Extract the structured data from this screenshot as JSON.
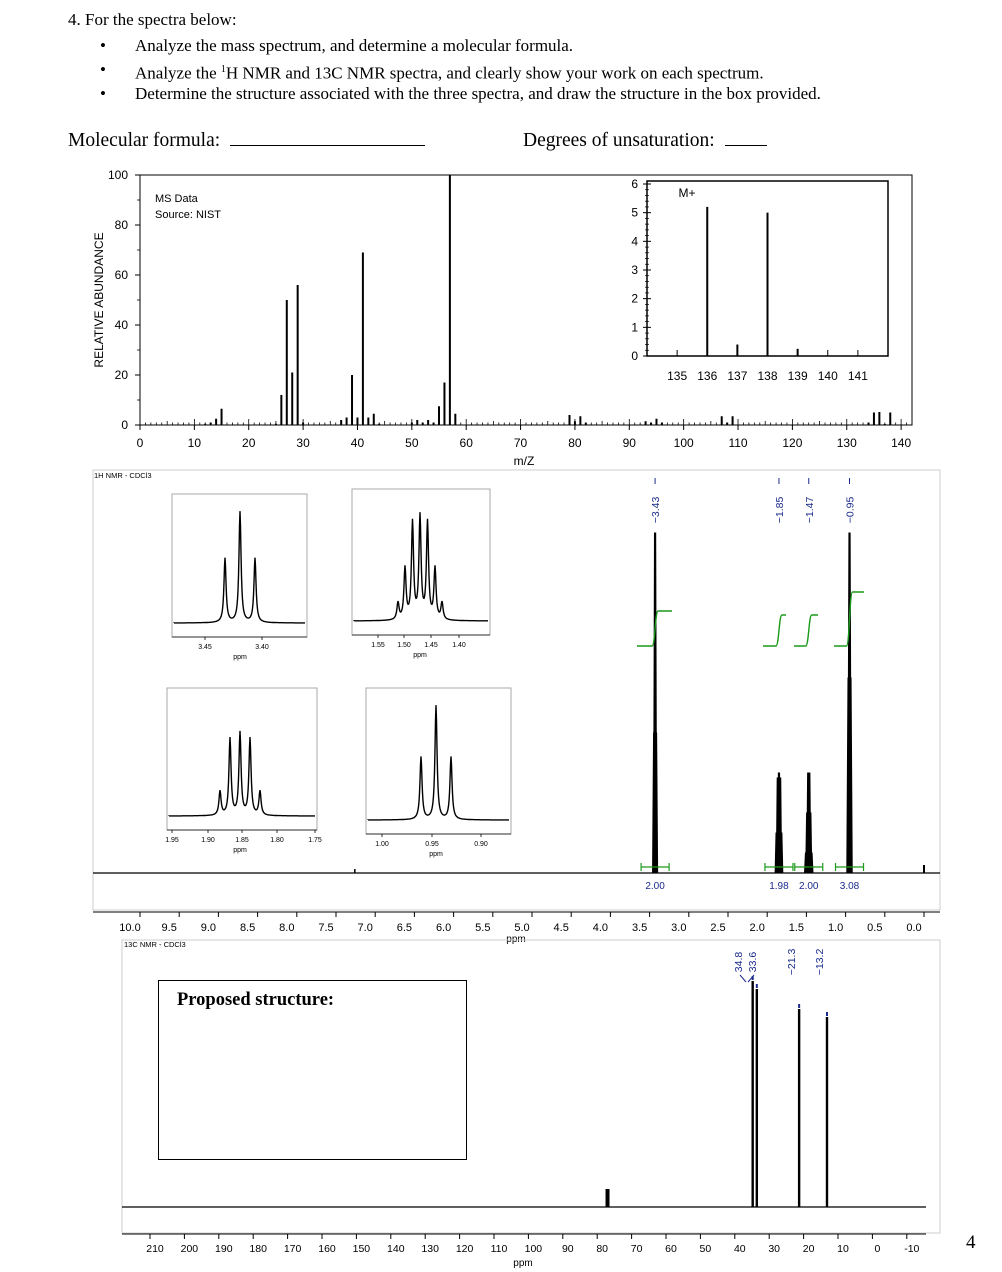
{
  "question": {
    "title": "4. For the spectra below:",
    "bullet1": "Analyze the mass spectrum, and determine a molecular formula.",
    "bullet2_pre": "Analyze the ",
    "bullet2_sup": "1",
    "bullet2_post": "H NMR and 13C NMR spectra, and clearly show your work on each spectrum.",
    "bullet3": "Determine the structure associated with the three spectra, and draw the structure in the box provided."
  },
  "fill_in": {
    "formula_label": "Molecular formula:",
    "dou_label": "Degrees of unsaturation:"
  },
  "page_number": "4",
  "chart_data": [
    {
      "type": "bar",
      "name": "mass-spectrum",
      "source_text_1": "MS Data",
      "source_text_2": "Source: NIST",
      "xlabel": "m/Z",
      "ylabel": "RELATIVE ABUNDANCE",
      "xlim": [
        0,
        142
      ],
      "ylim": [
        0,
        100
      ],
      "xticks": [
        0,
        10,
        20,
        30,
        40,
        50,
        60,
        70,
        80,
        90,
        100,
        110,
        120,
        130,
        140
      ],
      "yticks": [
        0,
        20,
        40,
        60,
        80,
        100
      ],
      "peaks": [
        [
          12,
          0.5
        ],
        [
          13,
          1
        ],
        [
          14,
          2.5
        ],
        [
          15,
          6.5
        ],
        [
          25,
          0.5
        ],
        [
          26,
          12
        ],
        [
          27,
          50
        ],
        [
          28,
          21
        ],
        [
          29,
          56
        ],
        [
          30,
          1
        ],
        [
          37,
          2
        ],
        [
          38,
          3
        ],
        [
          39,
          20
        ],
        [
          40,
          3
        ],
        [
          41,
          69
        ],
        [
          42,
          3
        ],
        [
          43,
          4.5
        ],
        [
          44,
          0.5
        ],
        [
          50,
          1
        ],
        [
          51,
          2
        ],
        [
          52,
          1
        ],
        [
          53,
          2
        ],
        [
          54,
          1
        ],
        [
          55,
          7.5
        ],
        [
          56,
          17
        ],
        [
          57,
          100
        ],
        [
          58,
          4.5
        ],
        [
          79,
          4
        ],
        [
          80,
          1.5
        ],
        [
          81,
          3.5
        ],
        [
          82,
          1
        ],
        [
          93,
          1.5
        ],
        [
          94,
          1
        ],
        [
          95,
          2.5
        ],
        [
          96,
          1
        ],
        [
          107,
          3.5
        ],
        [
          108,
          1
        ],
        [
          109,
          3.5
        ],
        [
          134,
          1
        ],
        [
          135,
          5
        ],
        [
          136,
          5.2
        ],
        [
          137,
          0.4
        ],
        [
          138,
          5
        ],
        [
          139,
          0.2
        ]
      ],
      "inset": {
        "label": "M+",
        "xticks": [
          135,
          136,
          137,
          138,
          139,
          140,
          141
        ],
        "yticks": [
          0,
          1,
          2,
          3,
          4,
          5,
          6
        ],
        "xlim": [
          134,
          142
        ],
        "ylim": [
          0,
          6
        ],
        "peaks": [
          [
            136,
            5.2
          ],
          [
            137,
            0.4
          ],
          [
            138,
            5.0
          ],
          [
            139,
            0.25
          ]
        ]
      }
    },
    {
      "type": "line",
      "name": "1h-nmr",
      "title": "1H NMR - CDCl3",
      "xlabel": "ppm",
      "xlim": [
        10,
        0
      ],
      "xticks": [
        "10.0",
        "9.5",
        "9.0",
        "8.5",
        "8.0",
        "7.5",
        "7.0",
        "6.5",
        "6.0",
        "5.5",
        "5.0",
        "4.5",
        "4.0",
        "3.5",
        "3.0",
        "2.5",
        "2.0",
        "1.5",
        "1.0",
        "0.5",
        "0.0"
      ],
      "peak_labels": [
        "3.43",
        "1.85",
        "1.47",
        "0.95"
      ],
      "integrals": [
        {
          "ppm": 3.43,
          "value": "2.00"
        },
        {
          "ppm": 1.85,
          "value": "1.98"
        },
        {
          "ppm": 1.47,
          "value": "2.00"
        },
        {
          "ppm": 0.95,
          "value": "3.08"
        }
      ],
      "insets": [
        {
          "name": "inset-3.43",
          "multiplicity": "triplet",
          "xticks": [
            "3.45",
            "3.40"
          ],
          "xlabel": "ppm"
        },
        {
          "name": "inset-1.47",
          "multiplicity": "sextet",
          "xticks": [
            "1.55",
            "1.50",
            "1.45",
            "1.40"
          ],
          "xlabel": "ppm"
        },
        {
          "name": "inset-1.85",
          "multiplicity": "quintet",
          "xticks": [
            "1.95",
            "1.90",
            "1.85",
            "1.80",
            "1.75"
          ],
          "xlabel": "ppm"
        },
        {
          "name": "inset-0.95",
          "multiplicity": "triplet",
          "xticks": [
            "1.00",
            "0.95",
            "0.90"
          ],
          "xlabel": "ppm"
        }
      ]
    },
    {
      "type": "line",
      "name": "13c-nmr",
      "title": "13C NMR - CDCl3",
      "xlabel": "ppm",
      "xlim": [
        210,
        -10
      ],
      "xticks": [
        "210",
        "200",
        "190",
        "180",
        "170",
        "160",
        "150",
        "140",
        "130",
        "120",
        "110",
        "100",
        "90",
        "80",
        "70",
        "60",
        "50",
        "40",
        "30",
        "20",
        "10",
        "0",
        "-10"
      ],
      "peak_labels": [
        "34.8",
        "33.6",
        "21.3",
        "13.2"
      ],
      "peaks_ppm": [
        34.8,
        33.6,
        21.3,
        13.2,
        77.0
      ],
      "structure_label": "Proposed structure:"
    }
  ]
}
